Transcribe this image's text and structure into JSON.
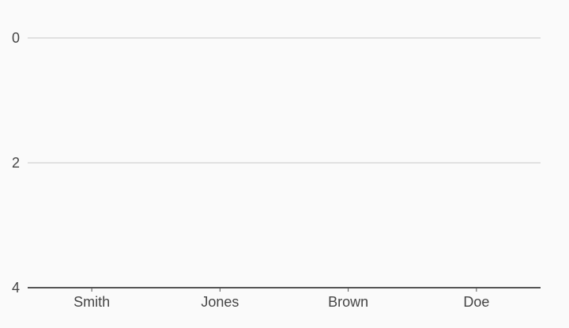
{
  "chart_data": {
    "type": "bar",
    "categories": [
      "Smith",
      "Jones",
      "Brown",
      "Doe"
    ],
    "values": [
      null,
      null,
      null,
      null
    ],
    "ylim": [
      0,
      4
    ],
    "y_axis_reversed": true,
    "y_ticks": [
      0,
      2,
      4
    ],
    "grid": true,
    "colors": {
      "background": "#fafafa",
      "grid": "#e0e0e0",
      "axis": "#555555",
      "text": "#444444"
    }
  }
}
